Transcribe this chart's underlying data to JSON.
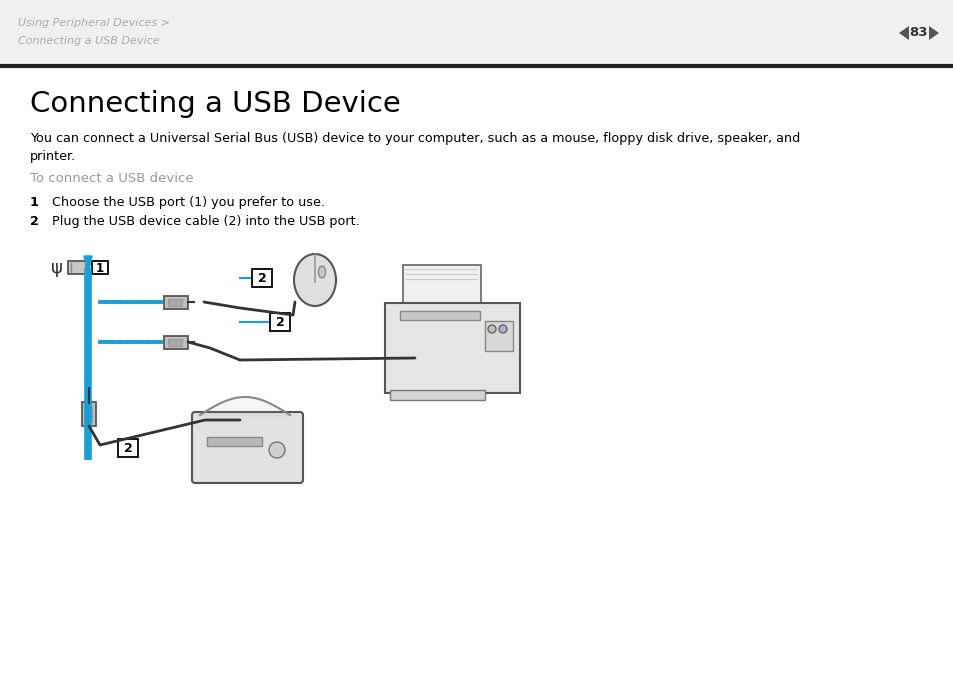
{
  "bg_color": "#ffffff",
  "header_text1": "Using Peripheral Devices >",
  "header_text2": "Connecting a USB Device",
  "page_num": "83",
  "header_fg": "#aaaaaa",
  "header_bg": "#f0f0f0",
  "title": "Connecting a USB Device",
  "body_line1": "You can connect a Universal Serial Bus (USB) device to your computer, such as a mouse, floppy disk drive, speaker, and",
  "body_line2": "printer.",
  "subtitle": "To connect a USB device",
  "subtitle_color": "#999999",
  "step1_num": "1",
  "step1_text": "Choose the USB port (1) you prefer to use.",
  "step2_num": "2",
  "step2_text": "Plug the USB device cable (2) into the USB port.",
  "divider_color": "#222222",
  "blue": "#1a9fd4",
  "dark": "#333333",
  "mid": "#888888",
  "light": "#dddddd",
  "fig_width": 9.54,
  "fig_height": 6.74,
  "dpi": 100
}
